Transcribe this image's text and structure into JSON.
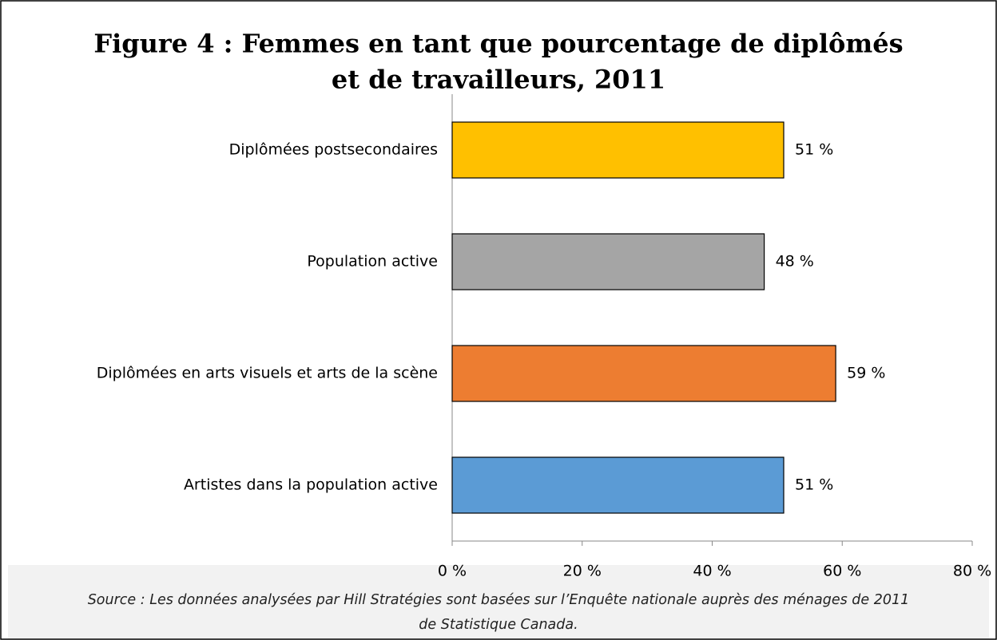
{
  "chart_data": {
    "type": "hbar",
    "title": [
      "Figure 4 : Femmes en tant que pourcentage de diplômés",
      "et de travailleurs, 2011"
    ],
    "categories": [
      "Diplômées postsecondaires",
      "Population active",
      "Diplômées en arts visuels et arts de la scène",
      "Artistes dans la population active"
    ],
    "values": [
      51,
      48,
      59,
      51
    ],
    "value_labels": [
      "51 %",
      "48 %",
      "59 %",
      "51 %"
    ],
    "colors": [
      "#ffc000",
      "#a5a5a5",
      "#ed7d31",
      "#5b9bd5"
    ],
    "xlim": [
      0,
      80
    ],
    "xticks": [
      {
        "value": 0,
        "label": "0 %"
      },
      {
        "value": 20,
        "label": "20 %"
      },
      {
        "value": 40,
        "label": "40 %"
      },
      {
        "value": 60,
        "label": "60 %"
      },
      {
        "value": 80,
        "label": "80 %"
      }
    ],
    "source": [
      "Source : Les données analysées par Hill Stratégies sont basées sur l’Enquête nationale auprès des ménages de 2011",
      "de Statistique Canada."
    ]
  }
}
